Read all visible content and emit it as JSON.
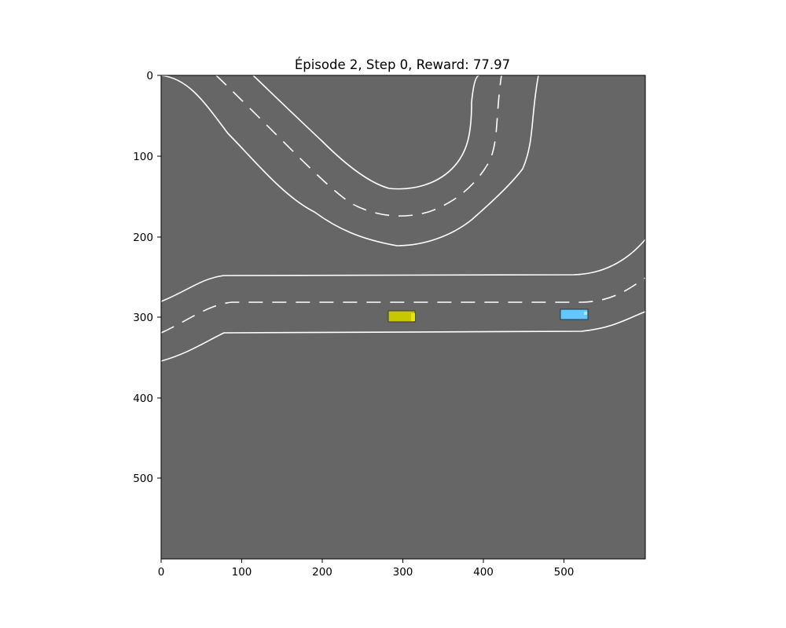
{
  "title": "Épisode 2, Step 0, Reward: 77.97",
  "axes": {
    "x_ticks": [
      "0",
      "100",
      "200",
      "300",
      "400",
      "500"
    ],
    "y_ticks": [
      "0",
      "100",
      "200",
      "300",
      "400",
      "500"
    ],
    "xlim": [
      0,
      600
    ],
    "ylim": [
      600,
      0
    ]
  },
  "colors": {
    "figure_background": "#ffffff",
    "road_background": "#666666",
    "lane_line": "#ffffff",
    "ego_vehicle": "#c8c800",
    "other_vehicle": "#64c8ff"
  },
  "scene": {
    "ego_vehicle": {
      "name": "ego-car",
      "color": "#c8c800"
    },
    "vehicles": [
      {
        "name": "other-car",
        "color": "#64c8ff"
      }
    ]
  }
}
